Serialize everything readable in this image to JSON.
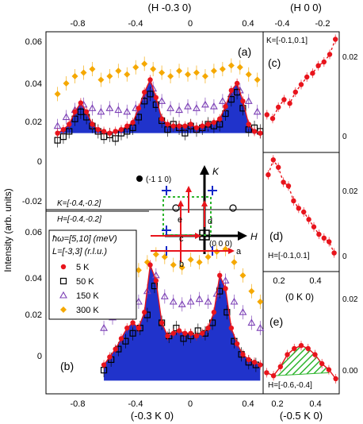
{
  "figure": {
    "ylabel": "Intensity (arb. units)",
    "colors": {
      "T5": "#e8141c",
      "T50": "#000000",
      "T150": "#7b3fb5",
      "T300": "#f5a800",
      "fill_blue": "#1428c8",
      "fill_green": "#2db52d"
    }
  },
  "legend": {
    "line1": "ħω=[5,10] (meV)",
    "line2": "L=[-3,3] (r.l.u.)",
    "entries": [
      "5  K",
      "50  K",
      "150 K",
      "300 K"
    ]
  },
  "inset": {
    "axis_K": "K",
    "axis_H": "H",
    "point_label": "(-1 1 0)",
    "origin_label": "(0 0 0)",
    "cut_labels": [
      "a",
      "b",
      "c",
      "d",
      "e"
    ]
  },
  "panel_a": {
    "label": "(a)",
    "top_title": "(H -0.3 0)",
    "top_ticks": [
      "-0.8",
      "-0.4",
      "0",
      "0.4"
    ],
    "y_ticks": [
      "0.06",
      "0.04",
      "0.02",
      "0",
      "-0.02"
    ],
    "notes": [
      "K=[-0.4,-0.2]",
      "H=[-0.4,-0.2]"
    ]
  },
  "panel_b": {
    "label": "(b)",
    "bottom_title": "(-0.3 K 0)",
    "bottom_ticks": [
      "-0.8",
      "-0.4",
      "0",
      "0.4"
    ],
    "y_ticks": [
      "0.06",
      "0.04",
      "0.02",
      "0"
    ]
  },
  "panel_c": {
    "label": "(c)",
    "top_title": "(H 0 0)",
    "top_ticks": [
      "-0.4",
      "-0.2"
    ],
    "note": "K=[-0.1,0.1]",
    "right_ticks": [
      "0.02",
      "0"
    ]
  },
  "panel_d": {
    "label": "(d)",
    "note": "H=[-0.1,0.1]",
    "right_ticks": [
      "0.02",
      "0"
    ]
  },
  "panel_e": {
    "label": "(e)",
    "top_title": "(0 K 0)",
    "top_ticks": [
      "0.2",
      "0.4"
    ],
    "bottom_title": "(-0.5 K 0)",
    "bottom_ticks": [
      "0.2",
      "0.4"
    ],
    "note": "H=[-0.6,-0.4]",
    "right_ticks": [
      "0.02",
      "0.00"
    ]
  },
  "chart_data": [
    {
      "panel": "a",
      "type": "scatter",
      "x_axis": "H",
      "xlim": [
        -1.0,
        0.5
      ],
      "ylim": [
        -0.035,
        0.065
      ],
      "series": [
        {
          "name": "5  K",
          "x": [
            -0.92,
            -0.88,
            -0.84,
            -0.8,
            -0.76,
            -0.72,
            -0.68,
            -0.64,
            -0.6,
            -0.56,
            -0.52,
            -0.48,
            -0.44,
            -0.4,
            -0.36,
            -0.32,
            -0.28,
            -0.24,
            -0.2,
            -0.16,
            -0.12,
            -0.08,
            -0.04,
            0,
            0.04,
            0.08,
            0.12,
            0.16,
            0.2,
            0.24,
            0.28,
            0.32,
            0.36,
            0.4,
            0.44,
            0.48
          ],
          "y": [
            0.008,
            0.01,
            0.013,
            0.02,
            0.025,
            0.02,
            0.013,
            0.01,
            0.009,
            0.008,
            0.009,
            0.01,
            0.012,
            0.014,
            0.022,
            0.031,
            0.038,
            0.028,
            0.016,
            0.013,
            0.012,
            0.012,
            0.012,
            0.013,
            0.011,
            0.012,
            0.013,
            0.014,
            0.016,
            0.023,
            0.032,
            0.036,
            0.026,
            0.013,
            0.009,
            0.008
          ]
        },
        {
          "name": "50  K",
          "x": [
            -0.92,
            -0.88,
            -0.84,
            -0.8,
            -0.76,
            -0.72,
            -0.68,
            -0.64,
            -0.6,
            -0.56,
            -0.52,
            -0.48,
            -0.44,
            -0.4,
            -0.36,
            -0.32,
            -0.28,
            -0.24,
            -0.2,
            -0.16,
            -0.12,
            -0.08,
            -0.04,
            0,
            0.04,
            0.08,
            0.12,
            0.16,
            0.2,
            0.24,
            0.28,
            0.32,
            0.36,
            0.4,
            0.44,
            0.48
          ],
          "y": [
            0.004,
            0.006,
            0.009,
            0.016,
            0.02,
            0.017,
            0.012,
            0.009,
            0.006,
            0.007,
            0.005,
            0.008,
            0.009,
            0.011,
            0.017,
            0.026,
            0.03,
            0.024,
            0.015,
            0.01,
            0.013,
            0.011,
            0.008,
            0.012,
            0.01,
            0.011,
            0.013,
            0.012,
            0.013,
            0.019,
            0.027,
            0.031,
            0.022,
            0.01,
            0.011,
            0.009
          ]
        },
        {
          "name": "150 K",
          "x": [
            -0.92,
            -0.86,
            -0.8,
            -0.74,
            -0.68,
            -0.62,
            -0.56,
            -0.5,
            -0.44,
            -0.38,
            -0.32,
            -0.26,
            -0.2,
            -0.14,
            -0.08,
            -0.02,
            0.04,
            0.1,
            0.16,
            0.22,
            0.28,
            0.34,
            0.4,
            0.46
          ],
          "y": [
            0.012,
            0.017,
            0.021,
            0.024,
            0.022,
            0.02,
            0.022,
            0.021,
            0.02,
            0.022,
            0.028,
            0.033,
            0.026,
            0.022,
            0.021,
            0.023,
            0.022,
            0.024,
            0.023,
            0.026,
            0.03,
            0.032,
            0.026,
            0.02
          ]
        },
        {
          "name": "300 K",
          "x": [
            -0.92,
            -0.86,
            -0.8,
            -0.74,
            -0.68,
            -0.62,
            -0.56,
            -0.5,
            -0.44,
            -0.38,
            -0.32,
            -0.26,
            -0.2,
            -0.14,
            -0.08,
            -0.02,
            0.04,
            0.1,
            0.16,
            0.22,
            0.28,
            0.34,
            0.4,
            0.46
          ],
          "y": [
            0.03,
            0.036,
            0.04,
            0.042,
            0.044,
            0.038,
            0.04,
            0.043,
            0.041,
            0.045,
            0.047,
            0.044,
            0.042,
            0.04,
            0.043,
            0.041,
            0.042,
            0.04,
            0.043,
            0.044,
            0.046,
            0.045,
            0.041,
            0.038
          ]
        }
      ]
    },
    {
      "panel": "b",
      "type": "scatter",
      "x_axis": "K",
      "xlim": [
        -1.0,
        0.5
      ],
      "ylim": [
        -0.005,
        0.065
      ],
      "series": [
        {
          "name": "5  K",
          "x": [
            -0.6,
            -0.56,
            -0.52,
            -0.48,
            -0.44,
            -0.4,
            -0.36,
            -0.32,
            -0.28,
            -0.24,
            -0.2,
            -0.16,
            -0.12,
            -0.08,
            -0.04,
            0,
            0.04,
            0.08,
            0.12,
            0.16,
            0.2,
            0.24,
            0.28,
            0.32,
            0.36,
            0.4,
            0.44,
            0.48
          ],
          "y": [
            0.006,
            0.009,
            0.012,
            0.016,
            0.02,
            0.022,
            0.02,
            0.026,
            0.044,
            0.038,
            0.022,
            0.017,
            0.018,
            0.019,
            0.018,
            0.018,
            0.017,
            0.018,
            0.02,
            0.026,
            0.04,
            0.035,
            0.02,
            0.014,
            0.01,
            0.008,
            0.007,
            0.006
          ]
        },
        {
          "name": "50  K",
          "x": [
            -0.6,
            -0.55,
            -0.5,
            -0.45,
            -0.4,
            -0.35,
            -0.3,
            -0.25,
            -0.2,
            -0.15,
            -0.1,
            -0.05,
            0,
            0.05,
            0.1,
            0.15,
            0.2,
            0.25,
            0.3,
            0.35,
            0.4,
            0.45
          ],
          "y": [
            0.004,
            0.008,
            0.012,
            0.015,
            0.018,
            0.02,
            0.025,
            0.036,
            0.022,
            0.017,
            0.02,
            0.016,
            0.017,
            0.019,
            0.018,
            0.022,
            0.034,
            0.026,
            0.015,
            0.01,
            0.007,
            0.006
          ]
        },
        {
          "name": "150 K",
          "x": [
            -0.6,
            -0.54,
            -0.48,
            -0.42,
            -0.36,
            -0.3,
            -0.24,
            -0.18,
            -0.12,
            -0.06,
            0,
            0.06,
            0.12,
            0.18,
            0.24,
            0.3,
            0.36,
            0.42,
            0.48
          ],
          "y": [
            0.02,
            0.024,
            0.027,
            0.029,
            0.03,
            0.034,
            0.04,
            0.032,
            0.03,
            0.029,
            0.03,
            0.031,
            0.03,
            0.033,
            0.038,
            0.03,
            0.026,
            0.022,
            0.02
          ]
        },
        {
          "name": "300 K",
          "x": [
            -0.6,
            -0.54,
            -0.48,
            -0.42,
            -0.36,
            -0.3,
            -0.24,
            -0.18,
            -0.12,
            -0.06,
            0,
            0.06,
            0.12,
            0.18,
            0.24,
            0.3,
            0.36,
            0.42,
            0.48
          ],
          "y": [
            0.026,
            0.03,
            0.036,
            0.038,
            0.042,
            0.045,
            0.048,
            0.047,
            0.044,
            0.043,
            0.046,
            0.045,
            0.047,
            0.049,
            0.05,
            0.045,
            0.04,
            0.034,
            0.03
          ]
        }
      ]
    },
    {
      "panel": "c",
      "type": "scatter",
      "x_axis": "H",
      "xlim": [
        -0.5,
        -0.1
      ],
      "ylim": [
        -0.004,
        0.028
      ],
      "series": [
        {
          "name": "5  K",
          "x": [
            -0.48,
            -0.45,
            -0.42,
            -0.39,
            -0.36,
            -0.33,
            -0.3,
            -0.27,
            -0.24,
            -0.21,
            -0.18,
            -0.15,
            -0.12
          ],
          "y": [
            0.006,
            0.005,
            0.008,
            0.01,
            0.009,
            0.012,
            0.014,
            0.016,
            0.017,
            0.019,
            0.02,
            0.022,
            0.026
          ]
        }
      ]
    },
    {
      "panel": "d",
      "type": "scatter",
      "x_axis": "K",
      "xlim": [
        -0.6,
        0.0
      ],
      "ylim": [
        -0.004,
        0.028
      ],
      "series": [
        {
          "name": "5  K",
          "x": [
            -0.56,
            -0.52,
            -0.48,
            -0.44,
            -0.4,
            -0.36,
            -0.32,
            -0.28,
            -0.24,
            -0.2,
            -0.16,
            -0.12,
            -0.08,
            -0.04
          ],
          "y": [
            0.022,
            0.026,
            0.024,
            0.02,
            0.019,
            0.015,
            0.013,
            0.012,
            0.01,
            0.008,
            0.006,
            0.005,
            0.004,
            0.001
          ]
        }
      ]
    },
    {
      "panel": "e",
      "type": "scatter",
      "x_axis": "K",
      "xlim": [
        0.08,
        0.52
      ],
      "ylim": [
        -0.004,
        0.026
      ],
      "series": [
        {
          "name": "5  K",
          "x": [
            0.1,
            0.14,
            0.18,
            0.22,
            0.26,
            0.3,
            0.34,
            0.38,
            0.42,
            0.46,
            0.5
          ],
          "y": [
            0.003,
            0.002,
            0.005,
            0.009,
            0.011,
            0.012,
            0.011,
            0.009,
            0.006,
            0.004,
            0.001
          ]
        }
      ]
    }
  ]
}
